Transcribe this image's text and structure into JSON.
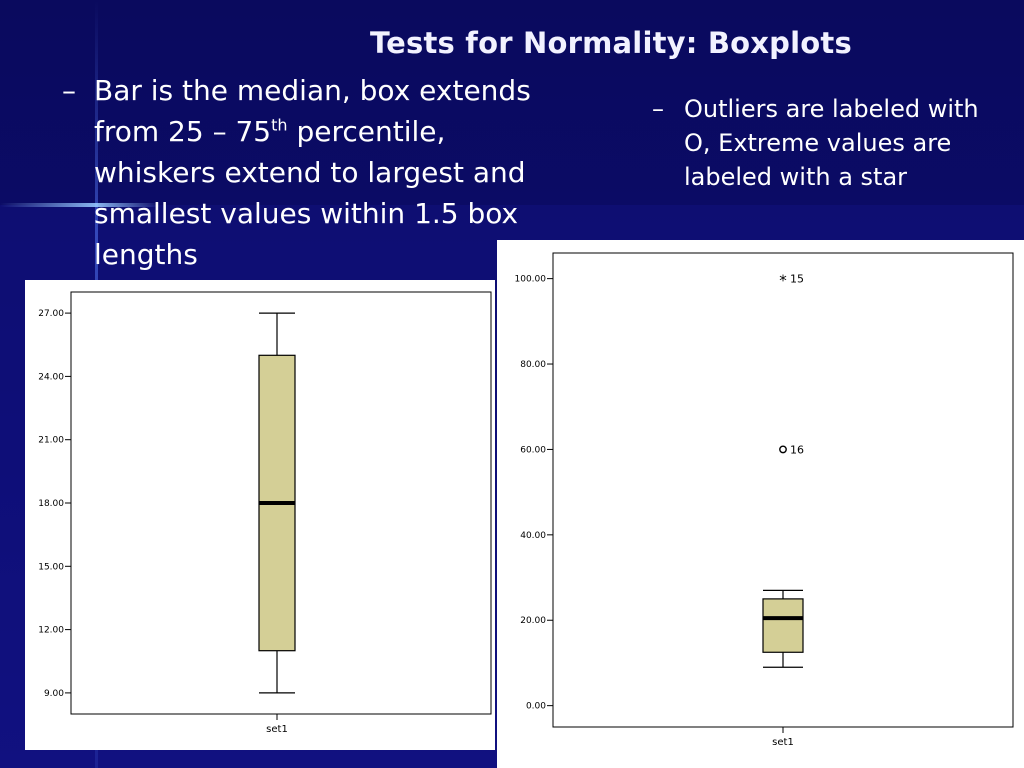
{
  "slide": {
    "title": "Tests for Normality: Boxplots",
    "bullet1": {
      "dash": "–",
      "line1": "Bar is the median, box extends from 25 – 75",
      "sup": "th",
      "line2": " percentile, whiskers extend to largest and smallest values within 1.5 box lengths"
    },
    "bullet2": {
      "dash": "–",
      "text": "Outliers are labeled with O, Extreme values are labeled with a star"
    }
  },
  "chart_data": [
    {
      "type": "boxplot",
      "category": "set1",
      "yticks": [
        "9.00",
        "12.00",
        "15.00",
        "18.00",
        "21.00",
        "24.00",
        "27.00"
      ],
      "ylim": [
        8.0,
        28.0
      ],
      "box": {
        "whisker_low": 9.0,
        "q1": 11.0,
        "median": 18.0,
        "q3": 25.0,
        "whisker_high": 27.0
      },
      "box_color": "#d4cf96"
    },
    {
      "type": "boxplot",
      "category": "set1",
      "yticks": [
        "0.00",
        "20.00",
        "40.00",
        "60.00",
        "80.00",
        "100.00"
      ],
      "ylim": [
        -5.0,
        106.0
      ],
      "box": {
        "whisker_low": 9.0,
        "q1": 12.5,
        "median": 20.5,
        "q3": 25.0,
        "whisker_high": 27.0
      },
      "box_color": "#d4cf96",
      "outliers": [
        {
          "value": 60.0,
          "label": "16",
          "marker": "circle"
        }
      ],
      "extremes": [
        {
          "value": 100.0,
          "label": "15",
          "marker": "star"
        }
      ]
    }
  ]
}
